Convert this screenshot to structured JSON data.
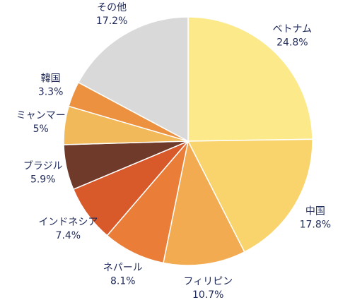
{
  "chart_data": {
    "type": "pie",
    "categories": [
      "ベトナム",
      "中国",
      "フィリピン",
      "ネパール",
      "インドネシア",
      "ブラジル",
      "ミャンマー",
      "韓国",
      "その他"
    ],
    "values": [
      24.8,
      17.8,
      10.7,
      8.1,
      7.4,
      5.9,
      5,
      3.3,
      17.2
    ],
    "value_labels": [
      "24.8%",
      "17.8%",
      "10.7%",
      "8.1%",
      "7.4%",
      "5.9%",
      "5%",
      "3.3%",
      "17.2%"
    ],
    "colors": [
      "#fbe98a",
      "#f9d46c",
      "#f3ab52",
      "#ea7e38",
      "#d85a2a",
      "#6f3a2a",
      "#f2b95a",
      "#ec9140",
      "#d9d9d9"
    ]
  }
}
